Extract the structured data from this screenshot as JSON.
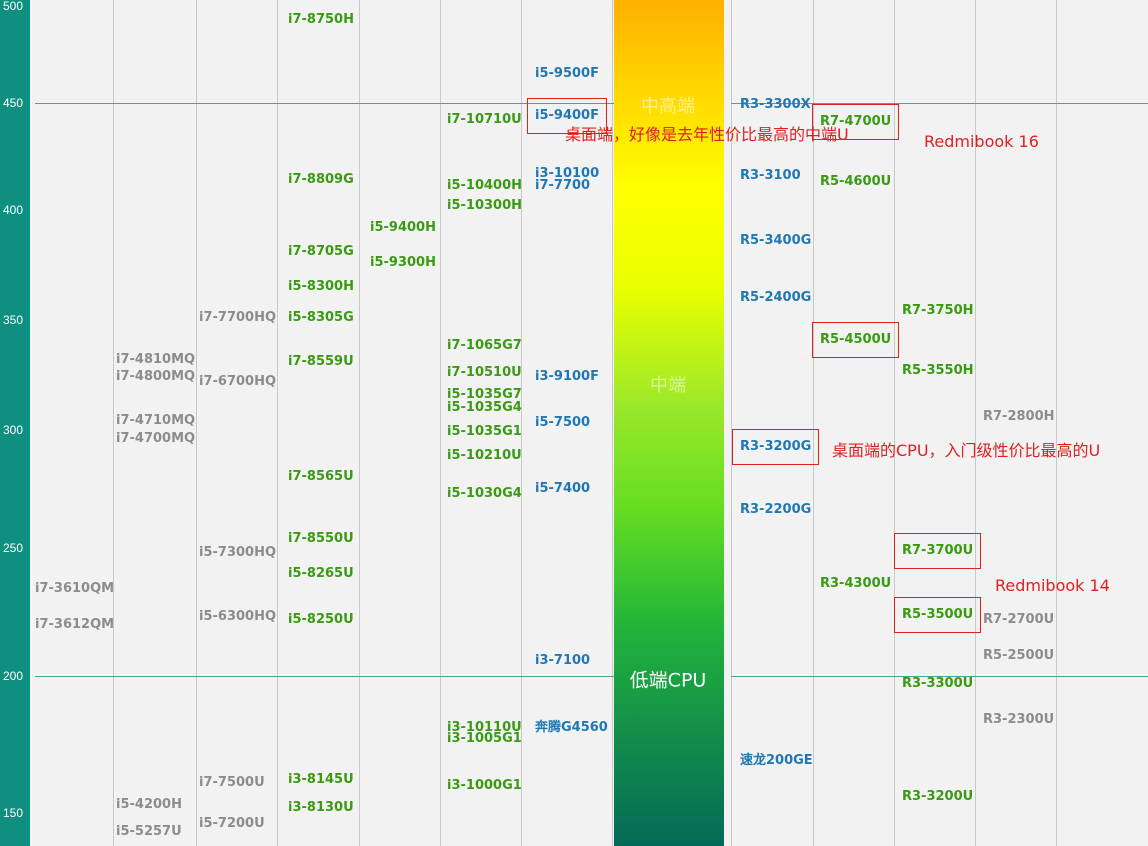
{
  "chart_data": {
    "type": "table",
    "y_axis": {
      "ticks": [
        "500",
        "450",
        "400",
        "350",
        "300",
        "250",
        "200",
        "150"
      ],
      "reference_lines": [
        450,
        200
      ]
    },
    "band": {
      "labels": [
        {
          "text": "中高端",
          "value": 449
        },
        {
          "text": "中端",
          "value": 321
        },
        {
          "text": "低端CPU",
          "value": 199
        }
      ]
    },
    "processors": [
      {
        "name": "i7-8750H",
        "value": 493,
        "col": 3,
        "color": "green"
      },
      {
        "name": "i7-8809G",
        "value": 414,
        "col": 3,
        "color": "green"
      },
      {
        "name": "i7-8705G",
        "value": 381,
        "col": 3,
        "color": "green"
      },
      {
        "name": "i5-8300H",
        "value": 365,
        "col": 3,
        "color": "green"
      },
      {
        "name": "i5-8305G",
        "value": 351,
        "col": 3,
        "color": "green"
      },
      {
        "name": "i7-8559U",
        "value": 331,
        "col": 3,
        "color": "green"
      },
      {
        "name": "i7-8565U",
        "value": 280,
        "col": 3,
        "color": "green"
      },
      {
        "name": "i7-8550U",
        "value": 254,
        "col": 3,
        "color": "green"
      },
      {
        "name": "i5-8265U",
        "value": 240,
        "col": 3,
        "color": "green"
      },
      {
        "name": "i5-8250U",
        "value": 222,
        "col": 3,
        "color": "green"
      },
      {
        "name": "i3-8145U",
        "value": 162,
        "col": 3,
        "color": "green"
      },
      {
        "name": "i3-8130U",
        "value": 152,
        "col": 3,
        "color": "green"
      },
      {
        "name": "i5-9400H",
        "value": 392,
        "col": 4,
        "color": "green"
      },
      {
        "name": "i5-9300H",
        "value": 376,
        "col": 4,
        "color": "green"
      },
      {
        "name": "i7-10710U",
        "value": 442,
        "col": 5,
        "color": "green"
      },
      {
        "name": "i5-10400H",
        "value": 411,
        "col": 5,
        "color": "green"
      },
      {
        "name": "i5-10300H",
        "value": 402,
        "col": 5,
        "color": "green"
      },
      {
        "name": "i7-1065G7",
        "value": 338,
        "col": 5,
        "color": "green"
      },
      {
        "name": "i7-10510U",
        "value": 326,
        "col": 5,
        "color": "green"
      },
      {
        "name": "i5-1035G7",
        "value": 316,
        "col": 5,
        "color": "green"
      },
      {
        "name": "i5-1035G4",
        "value": 310,
        "col": 5,
        "color": "green"
      },
      {
        "name": "i5-1035G1",
        "value": 299,
        "col": 5,
        "color": "green"
      },
      {
        "name": "i5-10210U",
        "value": 289,
        "col": 5,
        "color": "green"
      },
      {
        "name": "i5-1030G4",
        "value": 273,
        "col": 5,
        "color": "green"
      },
      {
        "name": "i3-10110U",
        "value": 181,
        "col": 5,
        "color": "green"
      },
      {
        "name": "i3-1005G1",
        "value": 177,
        "col": 5,
        "color": "green"
      },
      {
        "name": "i3-1000G1",
        "value": 160,
        "col": 5,
        "color": "green"
      },
      {
        "name": "i5-9500F",
        "value": 465,
        "col": 6,
        "color": "blue"
      },
      {
        "name": "i5-9400F",
        "value": 444,
        "col": 6,
        "color": "blue"
      },
      {
        "name": "i3-10100",
        "value": 417,
        "col": 6,
        "color": "blue"
      },
      {
        "name": "i7-7700",
        "value": 411,
        "col": 6,
        "color": "blue"
      },
      {
        "name": "i3-9100F",
        "value": 324,
        "col": 6,
        "color": "blue"
      },
      {
        "name": "i5-7500",
        "value": 303,
        "col": 6,
        "color": "blue"
      },
      {
        "name": "i5-7400",
        "value": 275,
        "col": 6,
        "color": "blue"
      },
      {
        "name": "i3-7100",
        "value": 206,
        "col": 6,
        "color": "blue"
      },
      {
        "name": "奔腾G4560",
        "value": 181,
        "col": 6,
        "color": "blue"
      },
      {
        "name": "R3-3300X",
        "value": 449,
        "col": 7,
        "color": "blue"
      },
      {
        "name": "R3-3100",
        "value": 416,
        "col": 7,
        "color": "blue"
      },
      {
        "name": "R5-3400G",
        "value": 386,
        "col": 7,
        "color": "blue"
      },
      {
        "name": "R5-2400G",
        "value": 360,
        "col": 7,
        "color": "blue"
      },
      {
        "name": "R3-3200G",
        "value": 293,
        "col": 7,
        "color": "blue"
      },
      {
        "name": "R3-2200G",
        "value": 266,
        "col": 7,
        "color": "blue"
      },
      {
        "name": "速龙200GE",
        "value": 169,
        "col": 7,
        "color": "blue"
      },
      {
        "name": "R7-4700U",
        "value": 441,
        "col": 8,
        "color": "green"
      },
      {
        "name": "R5-4600U",
        "value": 413,
        "col": 8,
        "color": "green"
      },
      {
        "name": "R5-4500U",
        "value": 341,
        "col": 8,
        "color": "green"
      },
      {
        "name": "R3-4300U",
        "value": 236,
        "col": 8,
        "color": "green"
      },
      {
        "name": "R7-3750H",
        "value": 354,
        "col": 9,
        "color": "green"
      },
      {
        "name": "R5-3550H",
        "value": 327,
        "col": 9,
        "color": "green"
      },
      {
        "name": "R7-3700U",
        "value": 249,
        "col": 9,
        "color": "green"
      },
      {
        "name": "R5-3500U",
        "value": 224,
        "col": 9,
        "color": "green"
      },
      {
        "name": "R3-3300U",
        "value": 197,
        "col": 9,
        "color": "green"
      },
      {
        "name": "R3-3200U",
        "value": 156,
        "col": 9,
        "color": "green"
      },
      {
        "name": "R7-2800H",
        "value": 306,
        "col": 10,
        "color": "gray"
      },
      {
        "name": "R7-2700U",
        "value": 222,
        "col": 10,
        "color": "gray"
      },
      {
        "name": "R5-2500U",
        "value": 208,
        "col": 10,
        "color": "gray"
      },
      {
        "name": "R3-2300U",
        "value": 184,
        "col": 10,
        "color": "gray"
      },
      {
        "name": "i7-3610QM",
        "value": 234,
        "col": 0,
        "color": "gray"
      },
      {
        "name": "i7-3612QM",
        "value": 220,
        "col": 0,
        "color": "gray"
      },
      {
        "name": "i7-4810MQ",
        "value": 332,
        "col": 1,
        "color": "gray"
      },
      {
        "name": "i7-4800MQ",
        "value": 324,
        "col": 1,
        "color": "gray"
      },
      {
        "name": "i7-4710MQ",
        "value": 304,
        "col": 1,
        "color": "gray"
      },
      {
        "name": "i7-4700MQ",
        "value": 296,
        "col": 1,
        "color": "gray"
      },
      {
        "name": "i5-4200H",
        "value": 153,
        "col": 1,
        "color": "gray"
      },
      {
        "name": "i5-5257U",
        "value": 143,
        "col": 1,
        "color": "gray"
      },
      {
        "name": "i7-7700HQ",
        "value": 351,
        "col": 2,
        "color": "gray"
      },
      {
        "name": "i7-6700HQ",
        "value": 322,
        "col": 2,
        "color": "gray"
      },
      {
        "name": "i5-7300HQ",
        "value": 248,
        "col": 2,
        "color": "gray"
      },
      {
        "name": "i5-6300HQ",
        "value": 223,
        "col": 2,
        "color": "gray"
      },
      {
        "name": "i7-7500U",
        "value": 161,
        "col": 2,
        "color": "gray"
      },
      {
        "name": "i5-7200U",
        "value": 146,
        "col": 2,
        "color": "gray"
      }
    ],
    "highlighted": [
      "i5-9400F",
      "R7-4700U",
      "R5-4500U",
      "R3-3200G",
      "R7-3700U",
      "R5-3500U"
    ],
    "annotations": [
      {
        "text": "桌面端，好像是去年性价比最高的中端U",
        "value": 437,
        "anchor": "i5-9400F"
      },
      {
        "text": "Redmibook 16",
        "value": 432,
        "anchor": "R7-4700U"
      },
      {
        "text": "桌面端的CPU，入门级性价比最高的U",
        "value": 293,
        "anchor": "R3-3200G"
      },
      {
        "text": "Redmibook 14",
        "value": 235,
        "anchor": "R7-3700U"
      }
    ]
  }
}
